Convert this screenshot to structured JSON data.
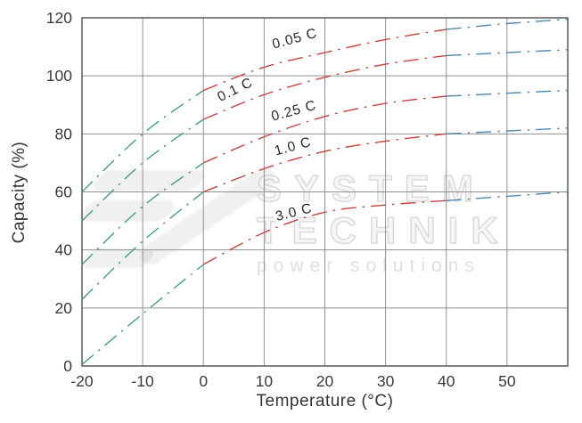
{
  "axes": {
    "x_title": "Temperature (°C)",
    "y_title": "Capacity (%)"
  },
  "watermark": {
    "line1": "SYSTEM",
    "line2": "TECHNIK",
    "line3": "power solutions",
    "logo": "stylized-lightning-Z-logo"
  },
  "chart_data": {
    "type": "line",
    "title": "",
    "xlabel": "Temperature (°C)",
    "ylabel": "Capacity (%)",
    "xlim": [
      -20,
      60
    ],
    "ylim": [
      0,
      120
    ],
    "x_ticks": [
      -20,
      -10,
      0,
      10,
      20,
      30,
      40,
      50
    ],
    "y_ticks": [
      0,
      20,
      40,
      60,
      80,
      100,
      120
    ],
    "grid": true,
    "legend": "labels-on-curves",
    "line_style": "dash-dot",
    "grid_color": "#8f8f8f",
    "border_color": "#4c4c4c",
    "segment_breaks": [
      0,
      40
    ],
    "segment_colors": [
      "#3f9e82",
      "#c8443e",
      "#4a87ad"
    ],
    "x": [
      -20,
      -10,
      0,
      10,
      20,
      30,
      40,
      50,
      60
    ],
    "series": [
      {
        "name": "0.05 C",
        "values": [
          60,
          80,
          95,
          103,
          108,
          112.5,
          116,
          118,
          119.5
        ],
        "label_pos": {
          "px": 332,
          "py": 48,
          "rot": -15
        }
      },
      {
        "name": "0.1 C",
        "values": [
          50,
          70,
          85,
          93.5,
          99.5,
          104,
          107,
          108,
          109
        ],
        "label_pos": {
          "px": 266,
          "py": 105,
          "rot": -26
        }
      },
      {
        "name": "0.25 C",
        "values": [
          35,
          55,
          70,
          79,
          86,
          90.5,
          93,
          94,
          95
        ],
        "label_pos": {
          "px": 331,
          "py": 129,
          "rot": -15
        }
      },
      {
        "name": "1.0 C",
        "values": [
          23,
          43,
          60,
          68,
          74,
          77.5,
          80,
          81,
          82
        ],
        "label_pos": {
          "px": 330,
          "py": 169,
          "rot": -15
        }
      },
      {
        "name": "3.0 C",
        "values": [
          0.5,
          18,
          35,
          46,
          53,
          55.5,
          57,
          58.5,
          60
        ],
        "label_pos": {
          "px": 331,
          "py": 243,
          "rot": -14
        }
      }
    ]
  }
}
